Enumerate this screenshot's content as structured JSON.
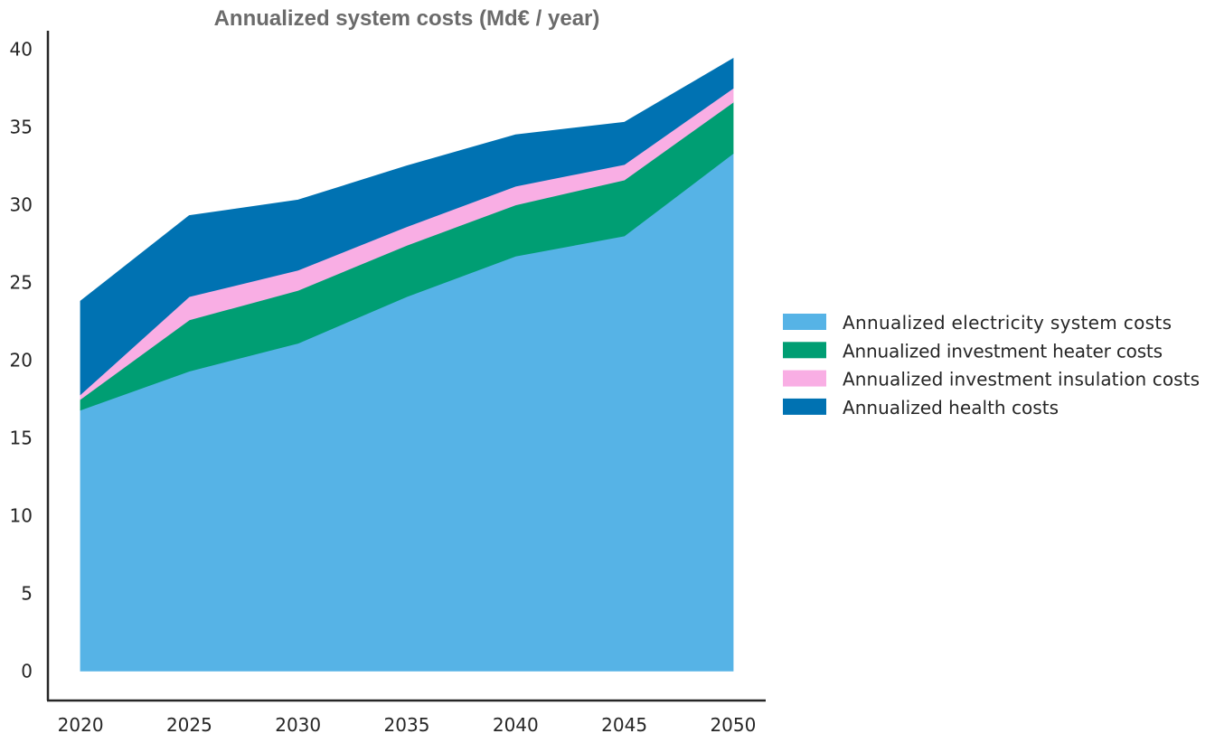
{
  "chart_data": {
    "type": "area",
    "stacked": true,
    "title": "Annualized system costs (Md€ / year)",
    "xlabel": "",
    "ylabel": "",
    "x": [
      2020,
      2025,
      2030,
      2035,
      2040,
      2045,
      2050
    ],
    "x_tick_labels": [
      "2020",
      "2025",
      "2030",
      "2035",
      "2040",
      "2045",
      "2050"
    ],
    "y_ticks": [
      0,
      5,
      10,
      15,
      20,
      25,
      30,
      35,
      40
    ],
    "y_tick_labels": [
      "0",
      "5",
      "10",
      "15",
      "20",
      "25",
      "30",
      "35",
      "40"
    ],
    "xlim": [
      2018.5,
      2051.5
    ],
    "ylim": [
      -1.9,
      41.2
    ],
    "grid": false,
    "legend_position": "center-right",
    "series": [
      {
        "name": "Annualized electricity system costs",
        "color": "#56b3e6",
        "values": [
          16.8,
          19.3,
          21.1,
          24.1,
          26.7,
          28.0,
          33.3
        ]
      },
      {
        "name": "Annualized investment heater costs",
        "color": "#009e73",
        "values": [
          0.7,
          3.3,
          3.4,
          3.3,
          3.3,
          3.6,
          3.3
        ]
      },
      {
        "name": "Annualized investment insulation costs",
        "color": "#f9aee4",
        "values": [
          0.3,
          1.5,
          1.3,
          1.2,
          1.2,
          1.0,
          0.9
        ]
      },
      {
        "name": "Annualized health costs",
        "color": "#0072b2",
        "values": [
          6.0,
          5.2,
          4.5,
          3.9,
          3.3,
          2.7,
          1.9
        ]
      }
    ]
  }
}
